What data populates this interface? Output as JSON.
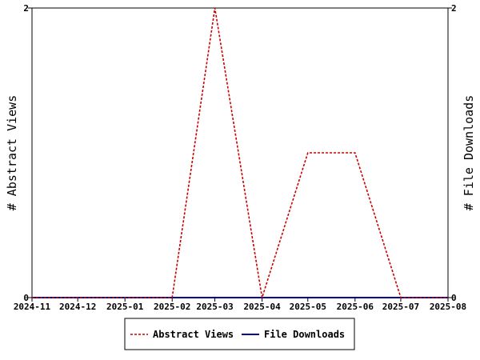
{
  "chart_data": {
    "type": "line",
    "title": "",
    "x": [
      "2024-11",
      "2024-12",
      "2025-01",
      "2025-02",
      "2025-03",
      "2025-04",
      "2025-05",
      "2025-06",
      "2025-07",
      "2025-08"
    ],
    "ylabel_left": "# Abstract Views",
    "ylabel_right": "# File Downloads",
    "ylim_left": [
      0,
      2
    ],
    "ylim_right": [
      0,
      2
    ],
    "yticks_left": [
      "0",
      "2"
    ],
    "yticks_right": [
      "0",
      "2"
    ],
    "grid": false,
    "legend_position": "bottom",
    "series": [
      {
        "name": "Abstract Views",
        "axis": "left",
        "color": "#cc0000",
        "dash": "dashed",
        "points": [
          [
            "2024-11-01",
            0
          ],
          [
            "2025-02-01",
            0
          ],
          [
            "2025-03-01",
            2
          ],
          [
            "2025-04-01",
            0
          ],
          [
            "2025-05-01",
            1
          ],
          [
            "2025-06-01",
            1
          ],
          [
            "2025-07-01",
            0
          ],
          [
            "2025-08-01",
            0
          ]
        ]
      },
      {
        "name": "File Downloads",
        "axis": "right",
        "color": "#000099",
        "dash": "solid",
        "points": [
          [
            "2024-11-01",
            0
          ],
          [
            "2025-08-01",
            0
          ]
        ]
      }
    ]
  }
}
